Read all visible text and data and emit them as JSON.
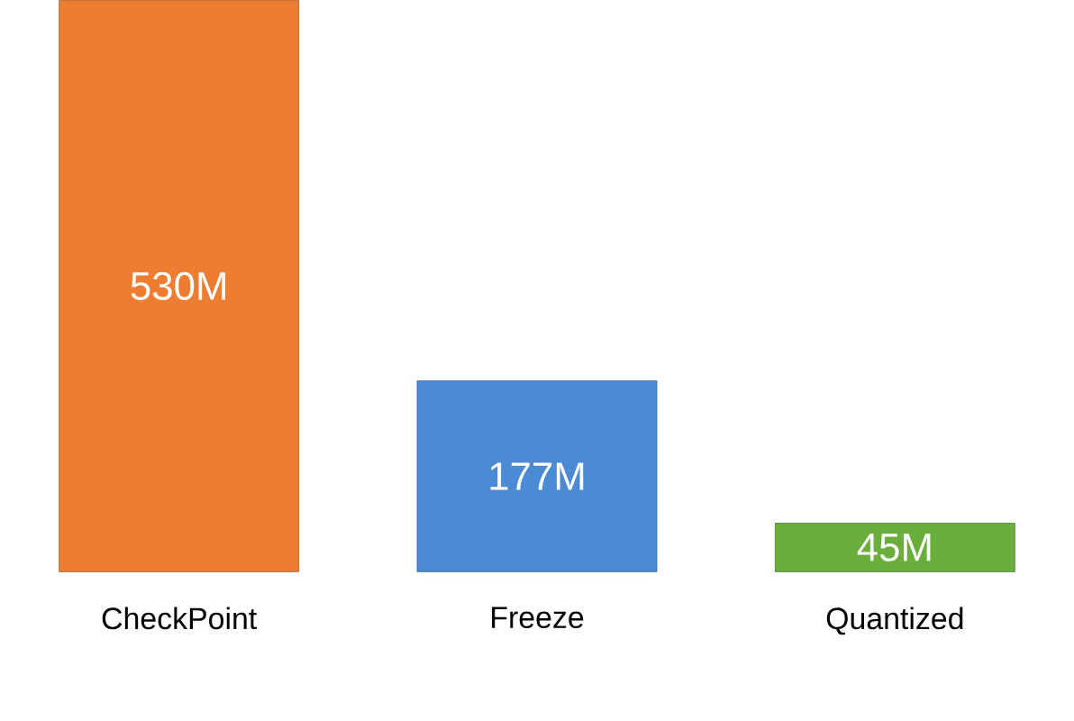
{
  "chart_data": {
    "type": "bar",
    "categories": [
      "CheckPoint",
      "Freeze",
      "Quantized"
    ],
    "values": [
      530,
      177,
      45
    ],
    "value_labels": [
      "530M",
      "177M",
      "45M"
    ],
    "colors": [
      "#ed7d31",
      "#4a8bd4",
      "#6aaf3c"
    ]
  }
}
